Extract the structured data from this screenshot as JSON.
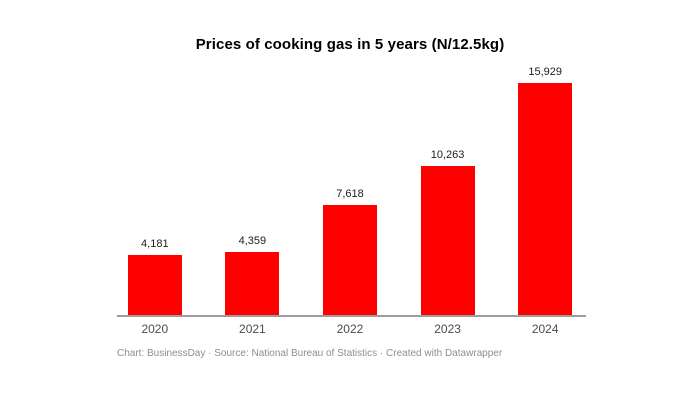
{
  "chart": {
    "title": "Prices of cooking gas in 5 years (N/12.5kg)",
    "attribution": {
      "chart": "Chart: BusinessDay",
      "separator": " · ",
      "source": "Source: National Bureau of Statistics",
      "created": "Created with Datawrapper"
    }
  },
  "chart_data": {
    "type": "bar",
    "title": "Prices of cooking gas in 5 years (N/12.5kg)",
    "categories": [
      "2020",
      "2021",
      "2022",
      "2023",
      "2024"
    ],
    "values": [
      4181,
      4359,
      7618,
      10263,
      15929
    ],
    "value_labels": [
      "4,181",
      "4,359",
      "7,618",
      "10,263",
      "15,929"
    ],
    "xlabel": "",
    "ylabel": "",
    "ylim": [
      0,
      15929
    ],
    "grid": false,
    "legend": "none",
    "bar_color": "#ff0000",
    "axis_line_color": "#9d9d9d",
    "value_label_color": "#1d1d1d",
    "tick_label_color": "#4c4c4c",
    "attribution_color": "#8e8e8e"
  }
}
